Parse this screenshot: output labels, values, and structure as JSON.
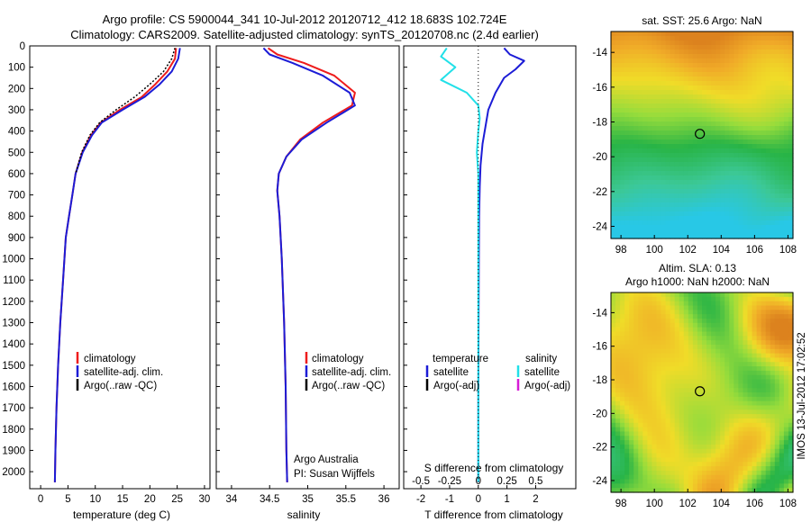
{
  "header": {
    "line1": "Argo profile: CS 5900044_341 10-Jul-2012 20120712_412 18.683S 102.724E",
    "line2": "Climatology: CARS2009. Satellite-adjusted climatology: synTS_20120708.nc (2.4d earlier)"
  },
  "colors": {
    "climatology": "#ee1c1c",
    "satellite": "#1c1cd6",
    "argo": "#000000",
    "satellite_salinity": "#22e0e8",
    "argo_salinity": "#d61cd6"
  },
  "chart_data": [
    {
      "type": "line",
      "name": "temperature-profile",
      "xlabel": "temperature (deg C)",
      "ylabel": "",
      "xlim": [
        -2,
        31
      ],
      "ylim": [
        2080,
        0
      ],
      "xticks": [
        "0",
        "5",
        "10",
        "15",
        "20",
        "25",
        "30"
      ],
      "yticks": [
        "0",
        "100",
        "200",
        "300",
        "400",
        "500",
        "600",
        "700",
        "800",
        "900",
        "1000",
        "1100",
        "1200",
        "1300",
        "1400",
        "1500",
        "1600",
        "1700",
        "1800",
        "1900",
        "2000"
      ],
      "legend": [
        "climatology",
        "satellite-adj. clim.",
        "Argo(..raw -QC)"
      ],
      "series": [
        {
          "name": "climatology",
          "x": [
            24.8,
            24.6,
            23.2,
            21.0,
            18.5,
            14.5,
            11.0,
            9.2,
            7.6,
            6.4,
            5.8,
            5.2,
            4.6,
            4.1,
            3.6,
            3.2,
            2.9,
            2.7,
            2.6
          ],
          "y": [
            10,
            60,
            120,
            180,
            240,
            300,
            360,
            420,
            500,
            600,
            700,
            800,
            900,
            1100,
            1300,
            1500,
            1700,
            1900,
            2050
          ]
        },
        {
          "name": "satellite-adj. clim.",
          "x": [
            25.5,
            25.2,
            24.0,
            21.8,
            19.0,
            15.0,
            11.2,
            9.4,
            7.7,
            6.4,
            5.8,
            5.2,
            4.6,
            4.1,
            3.6,
            3.2,
            2.9,
            2.7,
            2.6
          ],
          "y": [
            10,
            60,
            120,
            180,
            240,
            300,
            360,
            420,
            500,
            600,
            700,
            800,
            900,
            1100,
            1300,
            1500,
            1700,
            1900,
            2050
          ]
        },
        {
          "name": "Argo(..raw -QC)",
          "x": [
            24.6,
            24.0,
            22.5,
            20.0,
            17.2,
            13.8,
            10.8,
            9.0,
            7.5,
            6.4
          ],
          "y": [
            10,
            60,
            120,
            180,
            240,
            300,
            360,
            420,
            500,
            600
          ]
        }
      ]
    },
    {
      "type": "line",
      "name": "salinity-profile",
      "xlabel": "salinity",
      "ylabel": "",
      "xlim": [
        33.8,
        36.2
      ],
      "ylim": [
        2080,
        0
      ],
      "xticks": [
        "34",
        "34.5",
        "35",
        "35.5",
        "36"
      ],
      "legend": [
        "climatology",
        "satellite-adj. clim.",
        "Argo(..raw -QC)"
      ],
      "annotation": [
        "Argo Australia",
        "PI: Susan Wijffels"
      ],
      "series": [
        {
          "name": "climatology",
          "x": [
            34.48,
            34.6,
            34.95,
            35.35,
            35.62,
            35.58,
            35.2,
            34.9,
            34.72,
            34.62,
            34.6,
            34.63,
            34.66,
            34.69,
            34.71,
            34.72,
            34.73
          ],
          "y": [
            10,
            40,
            80,
            140,
            220,
            280,
            360,
            440,
            520,
            600,
            680,
            800,
            1000,
            1300,
            1600,
            1900,
            2050
          ]
        },
        {
          "name": "satellite-adj. clim.",
          "x": [
            34.42,
            34.5,
            34.8,
            35.2,
            35.55,
            35.62,
            35.25,
            34.92,
            34.72,
            34.62,
            34.6,
            34.63,
            34.66,
            34.69,
            34.71,
            34.72,
            34.73
          ],
          "y": [
            10,
            40,
            80,
            140,
            220,
            280,
            360,
            440,
            520,
            600,
            680,
            800,
            1000,
            1300,
            1600,
            1900,
            2050
          ]
        }
      ]
    },
    {
      "type": "line",
      "name": "difference-profile",
      "xlabel": "T difference from climatology",
      "xlabel_top": "S difference from climatology",
      "xlim": [
        -2.6,
        3.4
      ],
      "ylim": [
        2080,
        0
      ],
      "xticks": [
        "-2",
        "-1",
        "0",
        "1",
        "2"
      ],
      "xticks_top": [
        "-0.5",
        "-0.25",
        "0",
        "0.25",
        "0.5"
      ],
      "legend_titles": [
        "temperature",
        "salinity"
      ],
      "legend": [
        "satellite",
        "Argo(-adj)",
        "satellite",
        "Argo(-adj)"
      ],
      "series": [
        {
          "name": "temperature satellite",
          "x": [
            0.9,
            1.1,
            1.6,
            1.3,
            0.9,
            0.6,
            0.35,
            0.25,
            0.15,
            0.08,
            0.05,
            0.03,
            0.02,
            0.01,
            0.0,
            0.0
          ],
          "y": [
            10,
            40,
            70,
            110,
            150,
            220,
            300,
            380,
            460,
            560,
            660,
            800,
            1000,
            1300,
            1700,
            2050
          ]
        },
        {
          "name": "salinity satellite",
          "x": [
            -1.1,
            -1.3,
            -0.8,
            -1.3,
            -0.4,
            0.0,
            0.05,
            0.0,
            -0.05,
            0.0,
            0.0,
            0.0,
            0.0,
            0.0,
            0.0
          ],
          "y": [
            10,
            50,
            100,
            160,
            220,
            280,
            340,
            400,
            500,
            600,
            800,
            1000,
            1300,
            1700,
            2050
          ]
        }
      ]
    },
    {
      "type": "heatmap",
      "name": "sst-map",
      "title": "sat. SST: 25.6 Argo: NaN",
      "xlim": [
        97.4,
        108.3
      ],
      "ylim": [
        -24.7,
        -12.8
      ],
      "xticks": [
        "98",
        "100",
        "102",
        "104",
        "106",
        "108"
      ],
      "yticks": [
        "-14",
        "-16",
        "-18",
        "-20",
        "-22",
        "-24"
      ],
      "argo_position": {
        "lon": 102.724,
        "lat": -18.683
      }
    },
    {
      "type": "heatmap",
      "name": "sla-map",
      "title": [
        "Altim. SLA: 0.13",
        "Argo h1000: NaN h2000: NaN"
      ],
      "xlim": [
        97.4,
        108.3
      ],
      "ylim": [
        -24.7,
        -12.8
      ],
      "xticks": [
        "98",
        "100",
        "102",
        "104",
        "106",
        "108"
      ],
      "yticks": [
        "-14",
        "-16",
        "-18",
        "-20",
        "-22",
        "-24"
      ],
      "argo_position": {
        "lon": 102.724,
        "lat": -18.683
      }
    }
  ],
  "footer": {
    "stamp": "IMOS 13-Jul-2012 17:02:52"
  }
}
